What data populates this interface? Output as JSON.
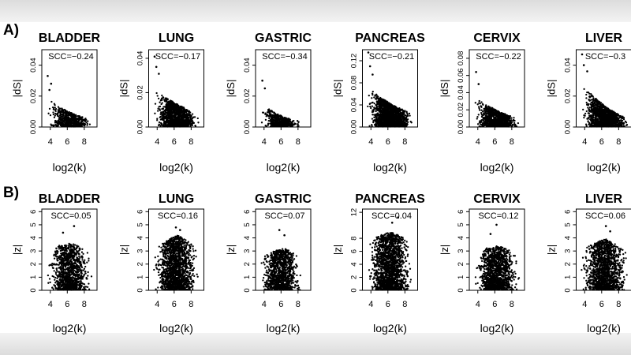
{
  "figure": {
    "row_labels": [
      "A)",
      "B)"
    ]
  },
  "chart_data": [
    {
      "type": "scatter",
      "panel": "A",
      "title": "BLADDER",
      "xlabel": "log2(k)",
      "ylabel": "|dS|",
      "annotation": "SCC=−0.24",
      "xticks": [
        4,
        6,
        8
      ],
      "xlim": [
        3,
        9.5
      ],
      "yticks": [
        "0.00",
        "0.02",
        "0.04"
      ],
      "ytick_values": [
        0,
        0.02,
        0.04
      ],
      "ylim": [
        0,
        0.05
      ],
      "n_points": 650,
      "trend": {
        "x": [
          3.5,
          5,
          6.5,
          8,
          9
        ],
        "y_lo": [
          0,
          0,
          0,
          0,
          0
        ],
        "y_hi": [
          0.02,
          0.013,
          0.009,
          0.006,
          0.005
        ]
      },
      "outliers": [
        [
          3.7,
          0.033
        ],
        [
          4.1,
          0.028
        ],
        [
          3.9,
          0.024
        ]
      ]
    },
    {
      "type": "scatter",
      "panel": "A",
      "title": "LUNG",
      "xlabel": "log2(k)",
      "ylabel": "|dS|",
      "annotation": "SCC=−0.17",
      "xticks": [
        4,
        6,
        8
      ],
      "xlim": [
        3,
        9.5
      ],
      "yticks": [
        "0.00",
        "0.02",
        "0.04"
      ],
      "ytick_values": [
        0,
        0.02,
        0.04
      ],
      "ylim": [
        0,
        0.045
      ],
      "n_points": 1300,
      "trend": {
        "x": [
          3.5,
          5,
          6.5,
          8,
          9
        ],
        "y_lo": [
          0,
          0,
          0,
          0,
          0
        ],
        "y_hi": [
          0.022,
          0.017,
          0.013,
          0.009,
          0.006
        ]
      },
      "outliers": [
        [
          3.7,
          0.041
        ],
        [
          3.9,
          0.035
        ],
        [
          4.2,
          0.031
        ]
      ]
    },
    {
      "type": "scatter",
      "panel": "A",
      "title": "GASTRIC",
      "xlabel": "log2(k)",
      "ylabel": "|dS|",
      "annotation": "SCC=−0.34",
      "xticks": [
        4,
        6,
        8
      ],
      "xlim": [
        3,
        9.5
      ],
      "yticks": [
        "0.00",
        "0.02",
        "0.04"
      ],
      "ytick_values": [
        0,
        0.02,
        0.04
      ],
      "ylim": [
        0,
        0.05
      ],
      "n_points": 550,
      "trend": {
        "x": [
          3.5,
          5,
          6.5,
          8,
          8.5
        ],
        "y_lo": [
          0,
          0,
          0,
          0,
          0
        ],
        "y_hi": [
          0.017,
          0.01,
          0.006,
          0.004,
          0.003
        ]
      },
      "outliers": [
        [
          3.8,
          0.03
        ],
        [
          4.1,
          0.025
        ]
      ]
    },
    {
      "type": "scatter",
      "panel": "A",
      "title": "PANCREAS",
      "xlabel": "log2(k)",
      "ylabel": "|dS|",
      "annotation": "SCC=−0.21",
      "xticks": [
        4,
        6,
        8
      ],
      "xlim": [
        3,
        9.5
      ],
      "yticks": [
        "0.00",
        "0.04",
        "0.08",
        "0.12"
      ],
      "ytick_values": [
        0,
        0.04,
        0.08,
        0.12
      ],
      "ylim": [
        0,
        0.14
      ],
      "n_points": 1700,
      "trend": {
        "x": [
          3.5,
          5,
          6.5,
          8,
          9
        ],
        "y_lo": [
          0,
          0,
          0,
          0,
          0
        ],
        "y_hi": [
          0.075,
          0.055,
          0.04,
          0.03,
          0.02
        ]
      },
      "outliers": [
        [
          3.7,
          0.135
        ],
        [
          3.9,
          0.11
        ],
        [
          4.2,
          0.095
        ]
      ]
    },
    {
      "type": "scatter",
      "panel": "A",
      "title": "CERVIX",
      "xlabel": "log2(k)",
      "ylabel": "|dS|",
      "annotation": "SCC=−0.22",
      "xticks": [
        4,
        6,
        8
      ],
      "xlim": [
        3,
        9.5
      ],
      "yticks": [
        "0.00",
        "0.02",
        "0.04",
        "0.06",
        "0.08"
      ],
      "ytick_values": [
        0,
        0.02,
        0.04,
        0.06,
        0.08
      ],
      "ylim": [
        0,
        0.09
      ],
      "n_points": 1000,
      "trend": {
        "x": [
          3.5,
          5,
          6.5,
          8,
          9
        ],
        "y_lo": [
          0,
          0,
          0,
          0,
          0
        ],
        "y_hi": [
          0.035,
          0.026,
          0.018,
          0.012,
          0.008
        ]
      },
      "outliers": [
        [
          3.8,
          0.064
        ],
        [
          4.1,
          0.05
        ]
      ]
    },
    {
      "type": "scatter",
      "panel": "A",
      "title": "LIVER",
      "xlabel": "log2(k)",
      "ylabel": "|dS|",
      "annotation": "SCC=−0.3",
      "xticks": [
        4,
        6,
        8
      ],
      "xlim": [
        3,
        9.5
      ],
      "yticks": [
        "0.00",
        "0.02",
        "0.04"
      ],
      "ytick_values": [
        0,
        0.02,
        0.04
      ],
      "ylim": [
        0,
        0.05
      ],
      "n_points": 1400,
      "trend": {
        "x": [
          3.5,
          5,
          6.5,
          8,
          9.3
        ],
        "y_lo": [
          0,
          0,
          0,
          0,
          0
        ],
        "y_hi": [
          0.028,
          0.02,
          0.013,
          0.008,
          0.005
        ]
      },
      "outliers": [
        [
          3.7,
          0.047
        ],
        [
          3.9,
          0.04
        ],
        [
          4.3,
          0.036
        ]
      ]
    },
    {
      "type": "scatter",
      "panel": "B",
      "title": "BLADDER",
      "xlabel": "log2(k)",
      "ylabel": "|z|",
      "annotation": "SCC=0.05",
      "xticks": [
        4,
        6,
        8
      ],
      "xlim": [
        3,
        9.5
      ],
      "yticks": [
        "0",
        "1",
        "2",
        "3",
        "4",
        "5",
        "6"
      ],
      "ytick_values": [
        0,
        1,
        2,
        3,
        4,
        5,
        6
      ],
      "ylim": [
        0,
        6.2
      ],
      "n_points": 1100,
      "trend": {
        "x": [
          3.5,
          5,
          6.5,
          8,
          9
        ],
        "y_lo": [
          0,
          0,
          0,
          0,
          0
        ],
        "y_hi": [
          3.0,
          3.4,
          3.6,
          3.2,
          2.5
        ]
      },
      "outliers": [
        [
          6.8,
          4.9
        ],
        [
          5.5,
          4.4
        ]
      ]
    },
    {
      "type": "scatter",
      "panel": "B",
      "title": "LUNG",
      "xlabel": "log2(k)",
      "ylabel": "|z|",
      "annotation": "SCC=0.16",
      "xticks": [
        4,
        6,
        8
      ],
      "xlim": [
        3,
        9.5
      ],
      "yticks": [
        "0",
        "1",
        "2",
        "3",
        "4",
        "5",
        "6"
      ],
      "ytick_values": [
        0,
        1,
        2,
        3,
        4,
        5,
        6
      ],
      "ylim": [
        0,
        6.2
      ],
      "n_points": 1600,
      "trend": {
        "x": [
          3.5,
          5,
          6.5,
          8,
          9
        ],
        "y_lo": [
          0,
          0,
          0,
          0,
          0
        ],
        "y_hi": [
          3.0,
          3.8,
          4.2,
          3.6,
          2.6
        ]
      },
      "outliers": [
        [
          6.2,
          4.8
        ],
        [
          6.7,
          4.6
        ]
      ]
    },
    {
      "type": "scatter",
      "panel": "B",
      "title": "GASTRIC",
      "xlabel": "log2(k)",
      "ylabel": "|z|",
      "annotation": "SCC=0.07",
      "xticks": [
        4,
        6,
        8
      ],
      "xlim": [
        3,
        9.5
      ],
      "yticks": [
        "0",
        "1",
        "2",
        "3",
        "4",
        "5",
        "6"
      ],
      "ytick_values": [
        0,
        1,
        2,
        3,
        4,
        5,
        6
      ],
      "ylim": [
        0,
        6.2
      ],
      "n_points": 1100,
      "trend": {
        "x": [
          3.5,
          5,
          6.5,
          8,
          8.5
        ],
        "y_lo": [
          0,
          0,
          0,
          0,
          0
        ],
        "y_hi": [
          2.4,
          3.0,
          3.2,
          2.6,
          2.0
        ]
      },
      "outliers": [
        [
          5.8,
          4.6
        ],
        [
          6.4,
          4.2
        ]
      ]
    },
    {
      "type": "scatter",
      "panel": "B",
      "title": "PANCREAS",
      "xlabel": "log2(k)",
      "ylabel": "|z|",
      "annotation": "SCC=0.04",
      "xticks": [
        4,
        6,
        8
      ],
      "xlim": [
        3,
        9.5
      ],
      "yticks": [
        "0",
        "2",
        "4",
        "6",
        "8",
        "12"
      ],
      "ytick_values": [
        0,
        2,
        4,
        6,
        8,
        12
      ],
      "ylim": [
        0,
        12.5
      ],
      "n_points": 1700,
      "trend": {
        "x": [
          3.5,
          5,
          6.5,
          8,
          9
        ],
        "y_lo": [
          0,
          0,
          0,
          0,
          0
        ],
        "y_hi": [
          7.0,
          8.5,
          9.0,
          8.0,
          6.0
        ]
      },
      "outliers": [
        [
          7.2,
          11.2
        ],
        [
          6.5,
          10.4
        ]
      ]
    },
    {
      "type": "scatter",
      "panel": "B",
      "title": "CERVIX",
      "xlabel": "log2(k)",
      "ylabel": "|z|",
      "annotation": "SCC=0.12",
      "xticks": [
        4,
        6,
        8
      ],
      "xlim": [
        3,
        9.5
      ],
      "yticks": [
        "0",
        "1",
        "2",
        "3",
        "4",
        "5",
        "6"
      ],
      "ytick_values": [
        0,
        1,
        2,
        3,
        4,
        5,
        6
      ],
      "ylim": [
        0,
        6.2
      ],
      "n_points": 1300,
      "trend": {
        "x": [
          3.5,
          5,
          6.5,
          8,
          9
        ],
        "y_lo": [
          0,
          0,
          0,
          0,
          0
        ],
        "y_hi": [
          2.6,
          3.2,
          3.4,
          3.0,
          2.2
        ]
      },
      "outliers": [
        [
          6.2,
          5.0
        ],
        [
          5.5,
          4.3
        ]
      ]
    },
    {
      "type": "scatter",
      "panel": "B",
      "title": "LIVER",
      "xlabel": "log2(k)",
      "ylabel": "|z|",
      "annotation": "SCC=0.06",
      "xticks": [
        4,
        6,
        8
      ],
      "xlim": [
        3,
        9.5
      ],
      "yticks": [
        "0",
        "1",
        "2",
        "3",
        "4",
        "5",
        "6"
      ],
      "ytick_values": [
        0,
        1,
        2,
        3,
        4,
        5,
        6
      ],
      "ylim": [
        0,
        6.2
      ],
      "n_points": 1400,
      "trend": {
        "x": [
          3.5,
          5,
          6.5,
          8,
          9.3
        ],
        "y_lo": [
          0,
          0,
          0,
          0,
          0
        ],
        "y_hi": [
          3.0,
          3.6,
          3.9,
          3.4,
          2.6
        ]
      },
      "outliers": [
        [
          6.5,
          4.9
        ],
        [
          7.0,
          4.5
        ]
      ]
    }
  ]
}
